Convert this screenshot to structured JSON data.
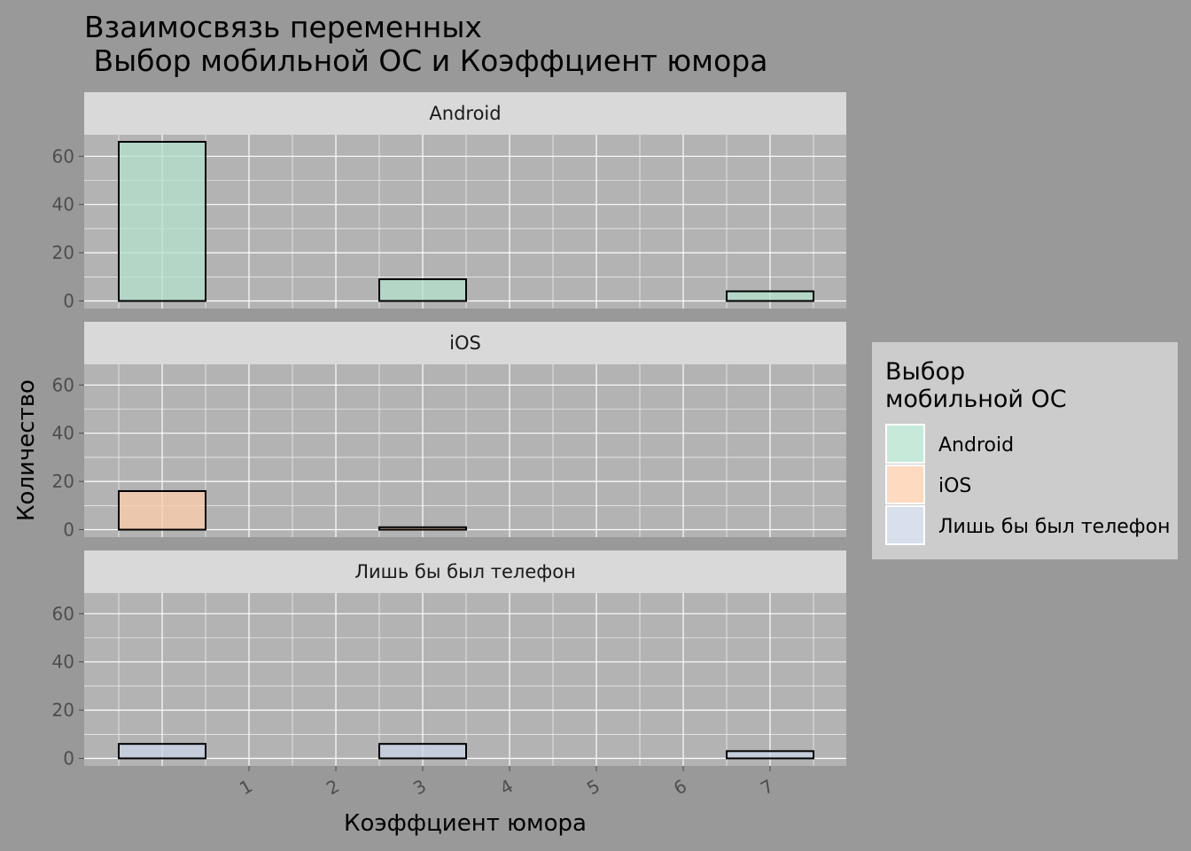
{
  "chart_data": {
    "type": "bar",
    "title_line1": "Взаимосвязь переменных",
    "title_line2": " Выбор мобильной ОС и Коэффциент юмора",
    "xlabel": "Коэффциент юмора",
    "ylabel": "Количество",
    "x_bins": [
      0,
      1,
      2,
      3,
      4,
      5,
      6,
      7
    ],
    "x_ticks": [
      1,
      2,
      3,
      4,
      5,
      6,
      7
    ],
    "ylim": [
      0,
      70
    ],
    "y_ticks": [
      0,
      20,
      40,
      60
    ],
    "facets": [
      {
        "name": "Android",
        "color": "#b3e2cd",
        "values": [
          66,
          0,
          0,
          9,
          0,
          0,
          0,
          4
        ]
      },
      {
        "name": "iOS",
        "color": "#fdcdac",
        "values": [
          16,
          0,
          0,
          1,
          0,
          0,
          0,
          0
        ]
      },
      {
        "name": "Лишь бы был телефон",
        "color": "#cbd5e8",
        "values": [
          6,
          0,
          0,
          6,
          0,
          0,
          0,
          3
        ]
      }
    ],
    "legend": {
      "title_line1": "Выбор",
      "title_line2": "мобильной ОС",
      "position": "right",
      "entries": [
        "Android",
        "iOS",
        "Лишь бы был телефон"
      ]
    }
  }
}
